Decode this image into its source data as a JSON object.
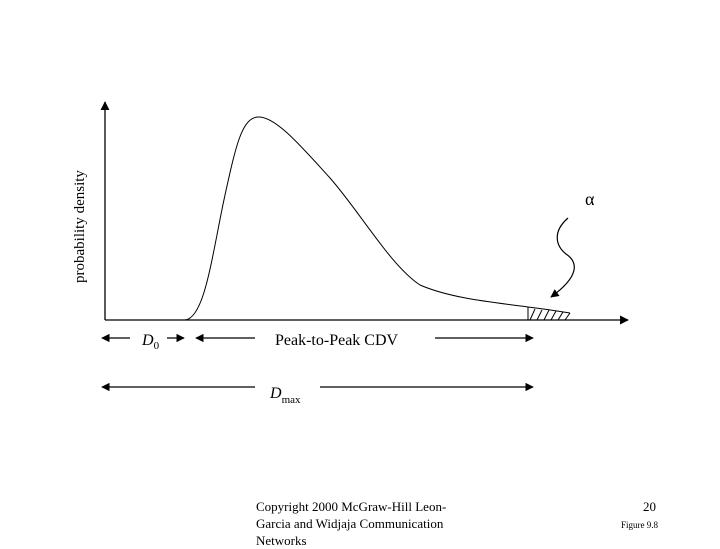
{
  "diagram": {
    "y_axis_label": "probability density",
    "alpha_symbol": "α",
    "d0_label": {
      "main": "D",
      "sub": "0"
    },
    "cdv_label": "Peak-to-Peak CDV",
    "dmax_label": {
      "main": "D",
      "sub": "max"
    }
  },
  "footer": {
    "copyright": "Copyright 2000 McGraw-Hill Leon-\nGarcia and Widjaja Communication\nNetworks",
    "page_number": "20",
    "figure_label": "Figure 9.8"
  }
}
